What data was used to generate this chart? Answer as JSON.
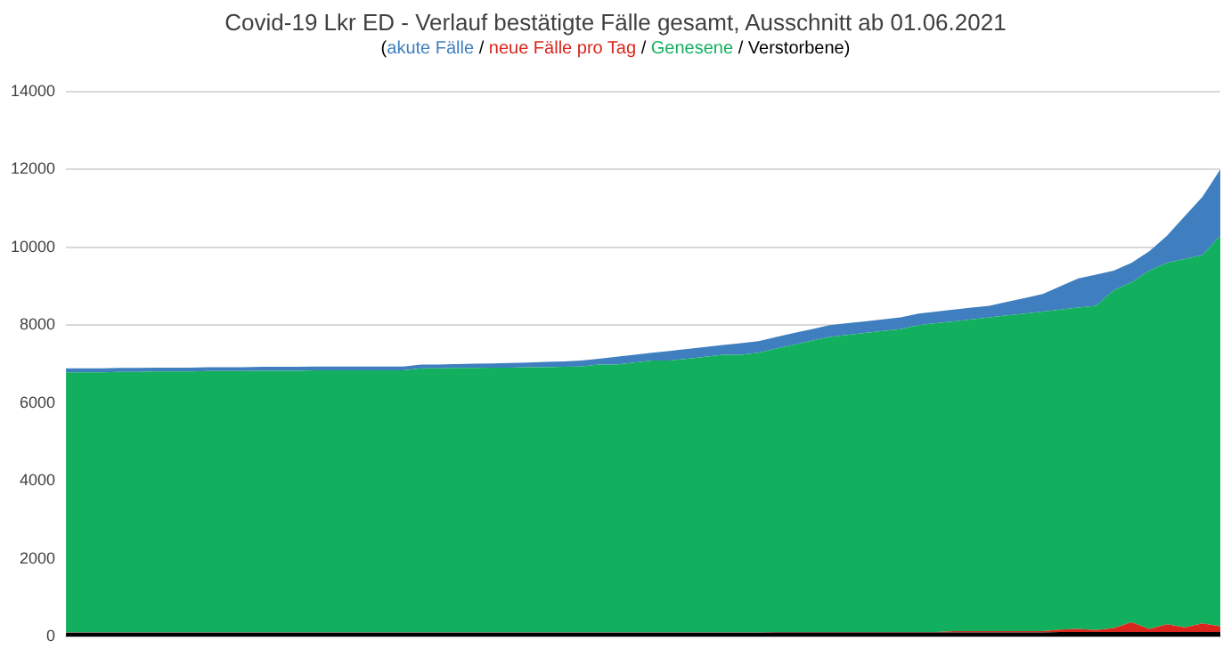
{
  "chart_data": {
    "type": "area",
    "stacked": true,
    "title": "Covid-19 Lkr ED - Verlauf bestätigte Fälle gesamt, Ausschnitt ab 01.06.2021",
    "subtitle": "(akute Fälle / neue Fälle pro Tag / Genesene / Verstorbene)",
    "grid": "y",
    "tick_labels": "y",
    "categories": [
      null,
      null,
      null,
      null,
      null,
      null,
      null,
      null,
      null,
      null,
      null,
      null,
      null,
      null,
      null,
      null,
      null,
      null,
      null,
      null,
      null,
      null,
      null,
      null,
      null,
      null,
      null,
      null,
      null,
      null,
      null,
      null,
      null,
      null,
      null,
      null,
      null,
      null,
      null,
      null,
      null,
      null,
      null,
      null,
      null,
      null,
      null,
      null,
      null,
      null,
      null,
      null,
      null,
      null,
      null,
      null,
      null,
      null,
      null,
      null,
      null,
      null,
      null,
      null,
      null,
      null
    ],
    "ylim": [
      0,
      14000
    ],
    "yticks": [
      0,
      2000,
      4000,
      6000,
      8000,
      10000,
      12000,
      14000
    ],
    "series": [
      {
        "color": "#000000",
        "values": [
          100,
          100,
          100,
          100,
          100,
          100,
          100,
          100,
          100,
          100,
          100,
          100,
          100,
          100,
          100,
          100,
          100,
          100,
          100,
          100,
          100,
          100,
          100,
          100,
          100,
          100,
          100,
          100,
          100,
          100,
          100,
          100,
          100,
          100,
          100,
          100,
          100,
          100,
          100,
          100,
          110,
          110,
          110,
          110,
          110,
          110,
          110,
          110,
          110,
          110,
          110,
          110,
          110,
          110,
          110,
          110,
          120,
          120,
          120,
          120,
          120,
          120,
          120,
          120,
          120,
          120
        ]
      },
      {
        "color": "#d9261c",
        "values": [
          10,
          10,
          10,
          10,
          10,
          10,
          10,
          10,
          10,
          10,
          10,
          10,
          10,
          10,
          10,
          10,
          10,
          10,
          10,
          10,
          10,
          10,
          10,
          10,
          10,
          10,
          10,
          10,
          10,
          10,
          10,
          10,
          10,
          10,
          10,
          10,
          10,
          10,
          10,
          10,
          10,
          10,
          10,
          10,
          10,
          10,
          10,
          10,
          10,
          10,
          30,
          30,
          30,
          30,
          30,
          30,
          60,
          80,
          50,
          100,
          250,
          80,
          200,
          120,
          220,
          150
        ]
      },
      {
        "color": "#12b05e",
        "values": [
          6680,
          6680,
          6680,
          6690,
          6690,
          6700,
          6700,
          6700,
          6710,
          6710,
          6710,
          6720,
          6720,
          6720,
          6730,
          6730,
          6730,
          6730,
          6730,
          6730,
          6780,
          6780,
          6790,
          6790,
          6800,
          6800,
          6810,
          6810,
          6820,
          6830,
          6880,
          6880,
          6930,
          6980,
          6980,
          7030,
          7080,
          7130,
          7130,
          7180,
          7280,
          7380,
          7480,
          7580,
          7630,
          7680,
          7730,
          7780,
          7880,
          7930,
          7960,
          8010,
          8060,
          8110,
          8160,
          8210,
          8220,
          8250,
          8330,
          8680,
          8730,
          9200,
          9280,
          9460,
          9460,
          10030
        ]
      },
      {
        "color": "#3f7fbf",
        "values": [
          100,
          100,
          100,
          100,
          100,
          100,
          100,
          100,
          100,
          100,
          100,
          100,
          100,
          100,
          100,
          100,
          100,
          100,
          100,
          100,
          100,
          100,
          100,
          110,
          110,
          120,
          120,
          140,
          140,
          150,
          150,
          200,
          200,
          200,
          250,
          250,
          250,
          250,
          300,
          300,
          300,
          300,
          300,
          300,
          300,
          300,
          300,
          300,
          300,
          300,
          300,
          300,
          300,
          350,
          400,
          450,
          600,
          750,
          800,
          500,
          500,
          500,
          700,
          1100,
          1500,
          1700
        ]
      }
    ]
  }
}
